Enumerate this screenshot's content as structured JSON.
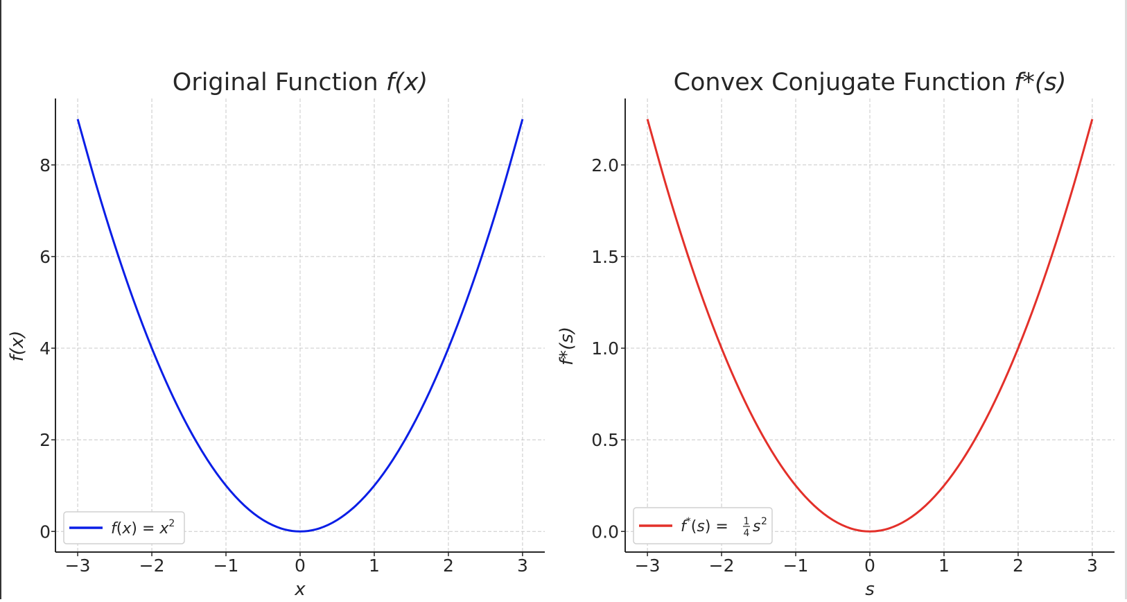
{
  "chart_data": [
    {
      "type": "line",
      "title": "Original Function f(x)",
      "title_plain": "Original Function ",
      "title_math": "f(x)",
      "xlabel": "x",
      "ylabel": "f(x)",
      "xlim": [
        -3.3,
        3.3
      ],
      "ylim": [
        -0.45,
        9.45
      ],
      "xticks": [
        -3,
        -2,
        -1,
        0,
        1,
        2,
        3
      ],
      "xtick_labels": [
        "−3",
        "−2",
        "−1",
        "0",
        "1",
        "2",
        "3"
      ],
      "yticks": [
        0,
        2,
        4,
        6,
        8
      ],
      "ytick_labels": [
        "0",
        "2",
        "4",
        "6",
        "8"
      ],
      "grid": true,
      "legend_position": "lower-left",
      "series": [
        {
          "name": "f(x) = x²",
          "color": "#0a1ee6",
          "x": [
            -3,
            -2.75,
            -2.5,
            -2.25,
            -2,
            -1.75,
            -1.5,
            -1.25,
            -1,
            -0.75,
            -0.5,
            -0.25,
            0,
            0.25,
            0.5,
            0.75,
            1,
            1.25,
            1.5,
            1.75,
            2,
            2.25,
            2.5,
            2.75,
            3
          ],
          "y": [
            9,
            7.5625,
            6.25,
            5.0625,
            4,
            3.0625,
            2.25,
            1.5625,
            1,
            0.5625,
            0.25,
            0.0625,
            0,
            0.0625,
            0.25,
            0.5625,
            1,
            1.5625,
            2.25,
            3.0625,
            4,
            5.0625,
            6.25,
            7.5625,
            9
          ]
        }
      ]
    },
    {
      "type": "line",
      "title": "Convex Conjugate Function f*(s)",
      "title_plain": "Convex Conjugate Function ",
      "title_math": "f*(s)",
      "xlabel": "s",
      "ylabel": "f*(s)",
      "xlim": [
        -3.3,
        3.3
      ],
      "ylim": [
        -0.1125,
        2.3625
      ],
      "xticks": [
        -3,
        -2,
        -1,
        0,
        1,
        2,
        3
      ],
      "xtick_labels": [
        "−3",
        "−2",
        "−1",
        "0",
        "1",
        "2",
        "3"
      ],
      "yticks": [
        0,
        0.5,
        1,
        1.5,
        2
      ],
      "ytick_labels": [
        "0.0",
        "0.5",
        "1.0",
        "1.5",
        "2.0"
      ],
      "grid": true,
      "legend_position": "lower-left",
      "series": [
        {
          "name": "f*(s) = ¼s²",
          "color": "#e3302a",
          "x": [
            -3,
            -2.75,
            -2.5,
            -2.25,
            -2,
            -1.75,
            -1.5,
            -1.25,
            -1,
            -0.75,
            -0.5,
            -0.25,
            0,
            0.25,
            0.5,
            0.75,
            1,
            1.25,
            1.5,
            1.75,
            2,
            2.25,
            2.5,
            2.75,
            3
          ],
          "y": [
            2.25,
            1.890625,
            1.5625,
            1.265625,
            1,
            0.765625,
            0.5625,
            0.390625,
            0.25,
            0.140625,
            0.0625,
            0.015625,
            0,
            0.015625,
            0.0625,
            0.140625,
            0.25,
            0.390625,
            0.5625,
            0.765625,
            1,
            1.265625,
            1.5625,
            1.890625,
            2.25
          ]
        }
      ]
    }
  ]
}
